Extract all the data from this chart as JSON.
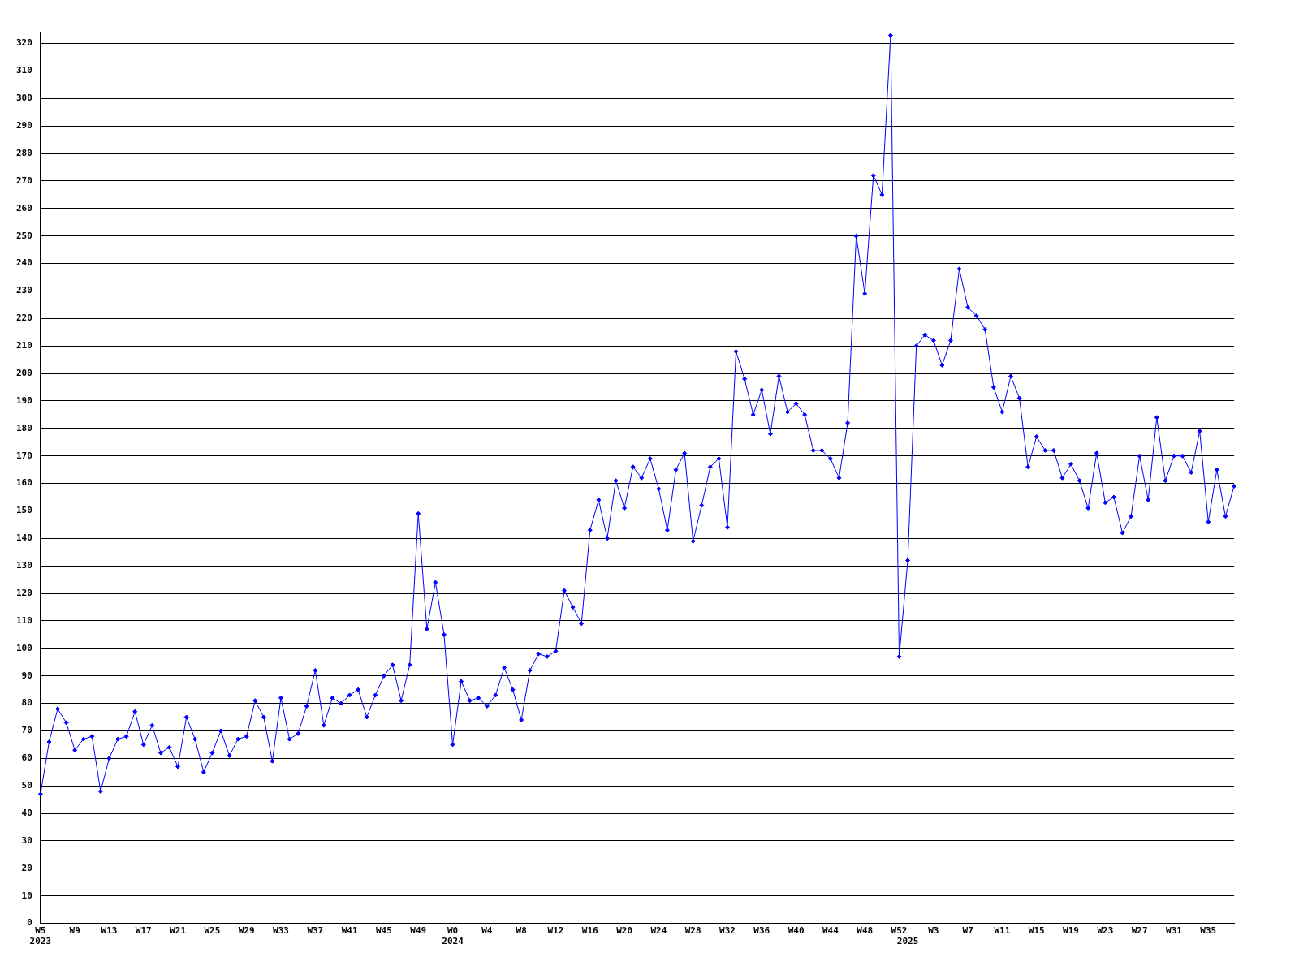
{
  "chart_data": {
    "type": "line",
    "categories": [
      "W5\n2023",
      null,
      null,
      null,
      "W9",
      null,
      null,
      null,
      "W13",
      null,
      null,
      null,
      "W17",
      null,
      null,
      null,
      "W21",
      null,
      null,
      null,
      "W25",
      null,
      null,
      null,
      "W29",
      null,
      null,
      null,
      "W33",
      null,
      null,
      null,
      "W37",
      null,
      null,
      null,
      "W41",
      null,
      null,
      null,
      "W45",
      null,
      null,
      null,
      "W49",
      null,
      null,
      null,
      "W0\n2024",
      null,
      null,
      null,
      "W4",
      null,
      null,
      null,
      "W8",
      null,
      null,
      null,
      "W12",
      null,
      null,
      null,
      "W16",
      null,
      null,
      null,
      "W20",
      null,
      null,
      null,
      "W24",
      null,
      null,
      null,
      "W28",
      null,
      null,
      null,
      "W32",
      null,
      null,
      null,
      "W36",
      null,
      null,
      null,
      "W40",
      null,
      null,
      null,
      "W44",
      null,
      null,
      null,
      "W48",
      null,
      null,
      null,
      "W52",
      "\n2025",
      null,
      null,
      "W3",
      null,
      null,
      null,
      "W7",
      null,
      null,
      null,
      "W11",
      null,
      null,
      null,
      "W15",
      null,
      null,
      null,
      "W19",
      null,
      null,
      null,
      "W23",
      null,
      null,
      null,
      "W27",
      null,
      null,
      null,
      "W31",
      null,
      null,
      null,
      "W35",
      null,
      null,
      null
    ],
    "series": [
      {
        "color": "#0000ff",
        "values": [
          47,
          66,
          78,
          73,
          63,
          67,
          68,
          48,
          60,
          67,
          68,
          77,
          65,
          72,
          62,
          64,
          57,
          75,
          67,
          55,
          62,
          70,
          61,
          67,
          68,
          81,
          75,
          59,
          82,
          67,
          69,
          79,
          92,
          72,
          82,
          80,
          83,
          85,
          75,
          83,
          90,
          94,
          81,
          94,
          149,
          107,
          124,
          105,
          65,
          88,
          81,
          82,
          79,
          83,
          93,
          85,
          74,
          92,
          98,
          97,
          99,
          121,
          115,
          109,
          143,
          154,
          140,
          161,
          151,
          166,
          162,
          169,
          158,
          143,
          165,
          171,
          139,
          152,
          166,
          169,
          144,
          208,
          198,
          185,
          194,
          178,
          199,
          186,
          189,
          185,
          172,
          172,
          169,
          162,
          182,
          250,
          229,
          272,
          265,
          323,
          97,
          132,
          210,
          214,
          212,
          203,
          212,
          238,
          224,
          221,
          216,
          195,
          186,
          199,
          191,
          166,
          177,
          172,
          172,
          162,
          167,
          161,
          151,
          171,
          153,
          155,
          142,
          148,
          170,
          154,
          184,
          161,
          170,
          170,
          164,
          179,
          146,
          165,
          148,
          159
        ]
      }
    ],
    "ylim": [
      0,
      324
    ],
    "yticks": [
      0,
      10,
      20,
      30,
      40,
      50,
      60,
      70,
      80,
      90,
      100,
      110,
      120,
      130,
      140,
      150,
      160,
      170,
      180,
      190,
      200,
      210,
      220,
      230,
      240,
      250,
      260,
      270,
      280,
      290,
      300,
      310,
      320
    ],
    "grid": "y",
    "marker": "diamond"
  }
}
